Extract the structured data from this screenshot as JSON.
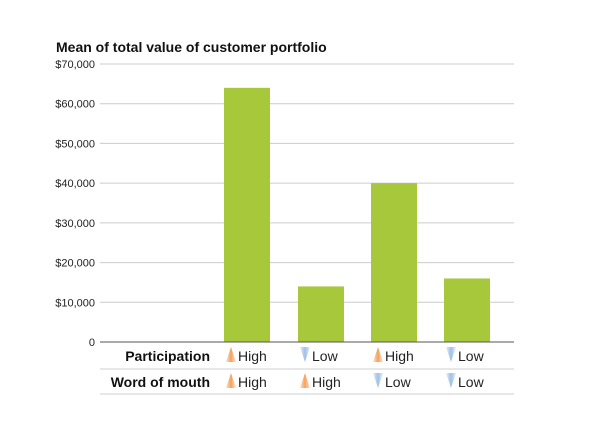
{
  "chart_data": {
    "type": "bar",
    "title": "Mean of total value of customer portfolio",
    "ylim": [
      0,
      70000
    ],
    "y_ticks": [
      {
        "value": 70000,
        "label": "$70,000"
      },
      {
        "value": 60000,
        "label": "$60,000"
      },
      {
        "value": 50000,
        "label": "$50,000"
      },
      {
        "value": 40000,
        "label": "$40,000"
      },
      {
        "value": 30000,
        "label": "$30,000"
      },
      {
        "value": 20000,
        "label": "$20,000"
      },
      {
        "value": 10000,
        "label": "$10,000"
      },
      {
        "value": 0,
        "label": "0"
      }
    ],
    "grid": true,
    "bar_color": "#a8c83c",
    "categories": [
      {
        "participation": "High",
        "word_of_mouth": "High"
      },
      {
        "participation": "Low",
        "word_of_mouth": "High"
      },
      {
        "participation": "High",
        "word_of_mouth": "Low"
      },
      {
        "participation": "Low",
        "word_of_mouth": "Low"
      }
    ],
    "values": [
      64000,
      14000,
      40000,
      16000
    ],
    "factors": [
      {
        "label": "Participation",
        "key": "participation"
      },
      {
        "label": "Word of mouth",
        "key": "word_of_mouth"
      }
    ],
    "indicator_colors": {
      "High": "#f3a25e",
      "Low": "#9fc0e6"
    },
    "indicator_icons": {
      "High": "up-triangle-icon",
      "Low": "down-triangle-icon"
    }
  }
}
